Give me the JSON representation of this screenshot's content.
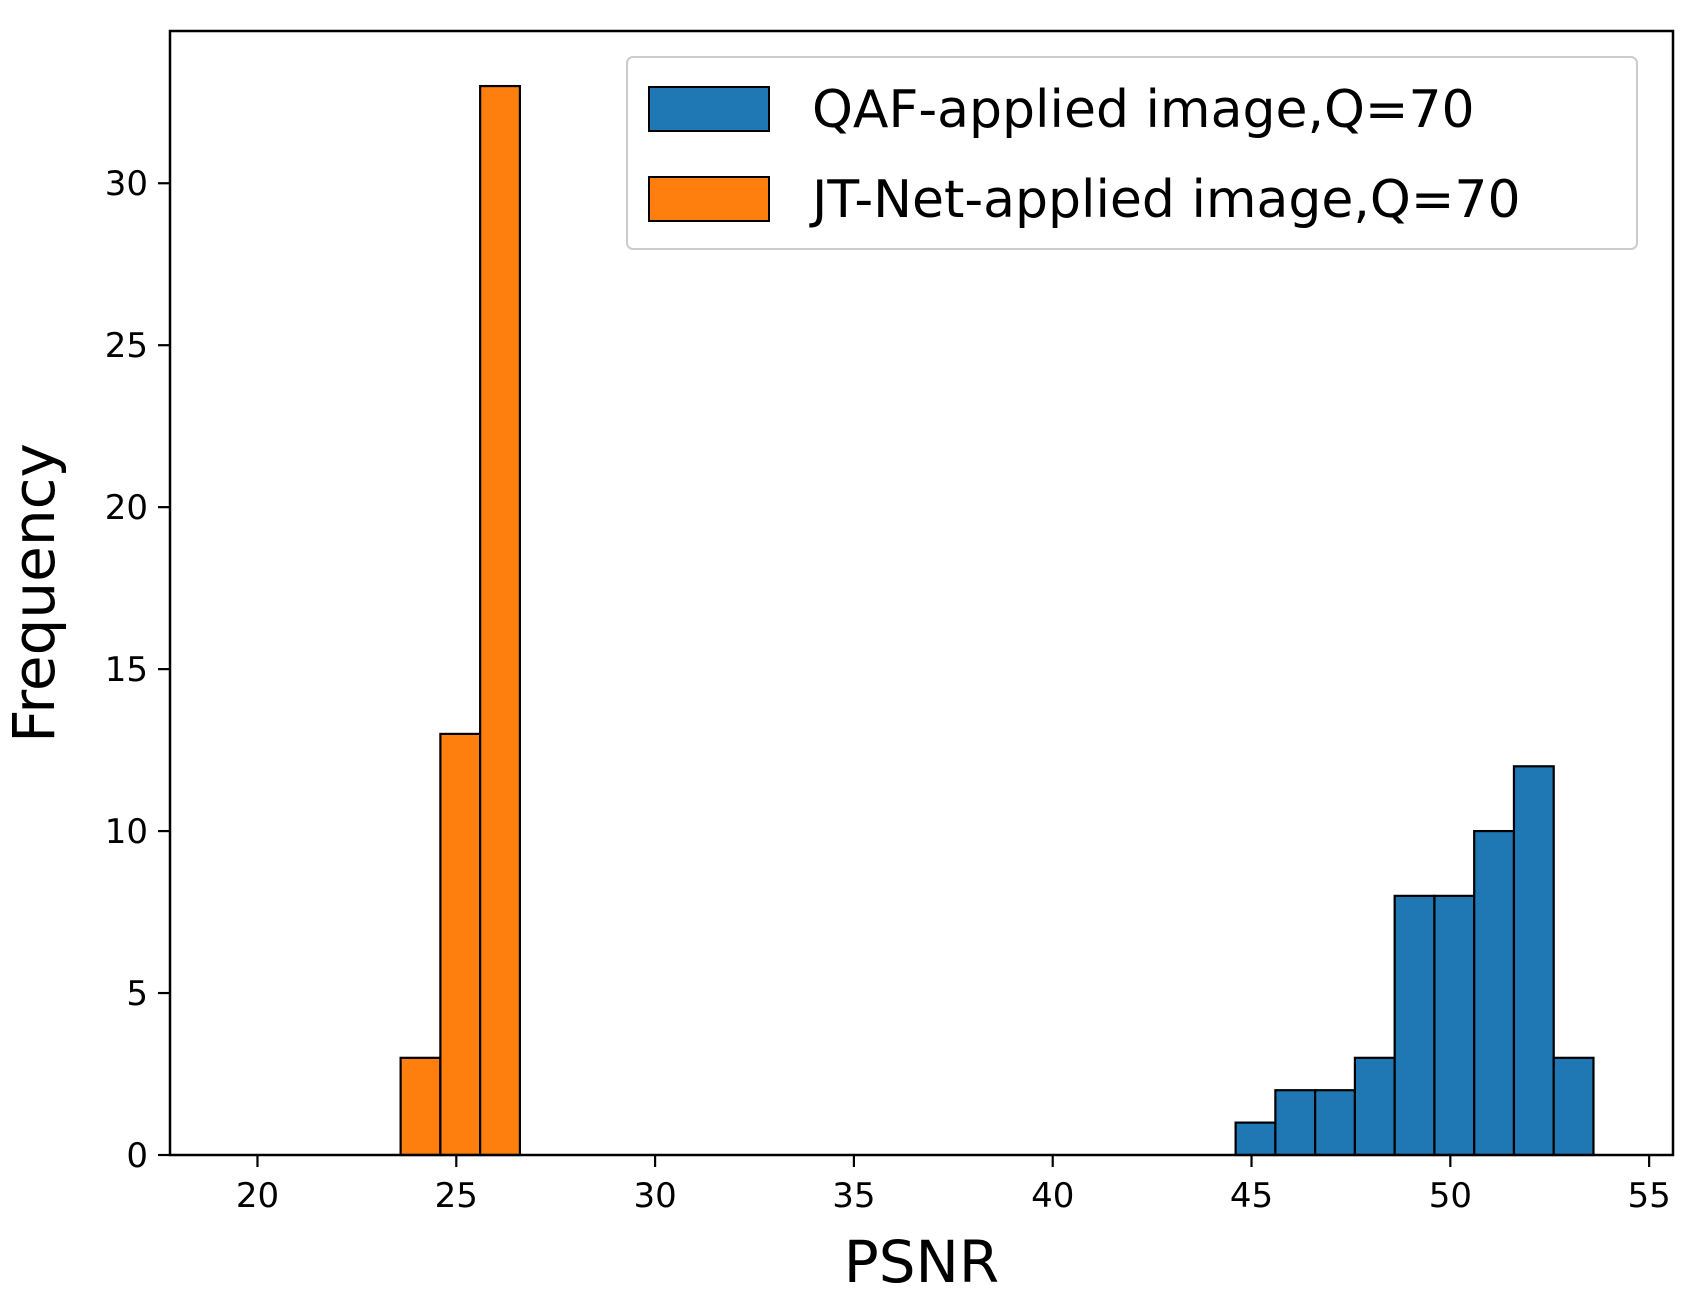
{
  "chart_data": {
    "type": "bar",
    "subtype": "histogram",
    "title": "",
    "xlabel": "PSNR",
    "ylabel": "Frequency",
    "xlim": [
      17.8,
      55.6
    ],
    "ylim": [
      0,
      34.7
    ],
    "x_ticks": [
      20,
      25,
      30,
      35,
      40,
      45,
      50,
      55
    ],
    "y_ticks": [
      0,
      5,
      10,
      15,
      20,
      25,
      30
    ],
    "grid": false,
    "legend_position": "top-right",
    "series": [
      {
        "name": "QAF-applied image,Q=70",
        "color": "#1f77b4",
        "bin_edges": [
          19.6,
          20.6,
          21.6,
          22.6,
          23.6,
          24.6,
          25.6,
          26.6,
          27.6,
          28.6,
          29.6,
          30.6,
          31.6,
          32.6,
          33.6,
          34.6,
          35.6,
          36.6,
          37.6,
          38.6,
          39.6,
          40.6,
          41.6,
          42.6,
          43.6,
          44.6,
          45.6,
          46.6,
          47.6,
          48.6,
          49.6,
          50.6,
          51.6,
          52.6,
          53.6,
          54.6
        ],
        "counts": [
          0,
          0,
          0,
          0,
          0,
          0,
          0,
          0,
          0,
          0,
          0,
          0,
          0,
          0,
          0,
          0,
          0,
          0,
          0,
          0,
          0,
          0,
          0,
          0,
          0,
          1,
          2,
          2,
          3,
          8,
          8,
          10,
          12,
          3,
          0
        ]
      },
      {
        "name": "JT-Net-applied image,Q=70",
        "color": "#ff7f0e",
        "bin_edges": [
          19.6,
          20.6,
          21.6,
          22.6,
          23.6,
          24.6,
          25.6,
          26.6,
          27.6,
          28.6,
          29.6,
          30.6,
          31.6,
          32.6,
          33.6,
          34.6,
          35.6,
          36.6,
          37.6,
          38.6,
          39.6,
          40.6,
          41.6,
          42.6,
          43.6,
          44.6,
          45.6,
          46.6,
          47.6,
          48.6,
          49.6,
          50.6,
          51.6,
          52.6,
          53.6,
          54.6
        ],
        "counts": [
          0,
          0,
          0,
          0,
          3,
          13,
          33,
          0,
          0,
          0,
          0,
          0,
          0,
          0,
          0,
          0,
          0,
          0,
          0,
          0,
          0,
          0,
          0,
          0,
          0,
          0,
          0,
          0,
          0,
          0,
          0,
          0,
          0,
          0,
          0
        ]
      }
    ]
  }
}
